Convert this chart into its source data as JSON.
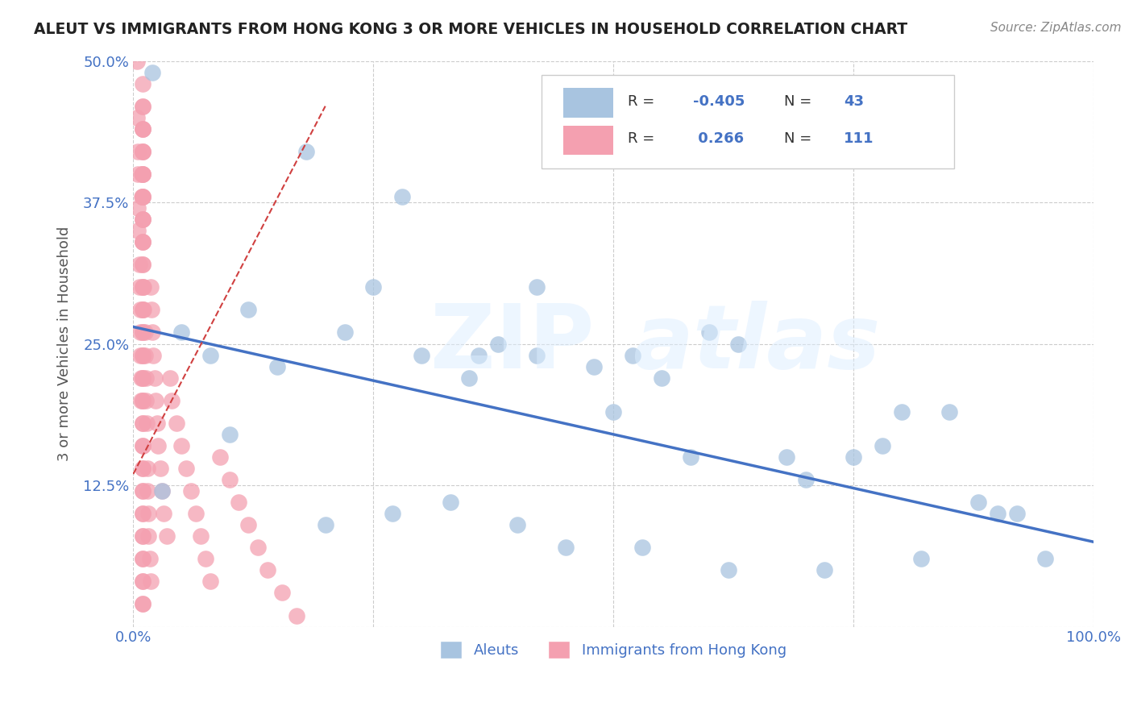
{
  "title": "ALEUT VS IMMIGRANTS FROM HONG KONG 3 OR MORE VEHICLES IN HOUSEHOLD CORRELATION CHART",
  "source": "Source: ZipAtlas.com",
  "ylabel": "3 or more Vehicles in Household",
  "xlim": [
    0,
    1.0
  ],
  "ylim": [
    0,
    0.5
  ],
  "blue_color": "#a8c4e0",
  "pink_color": "#f4a0b0",
  "line_blue": "#4472c4",
  "line_pink": "#d04040",
  "aleut_x": [
    0.02,
    0.18,
    0.12,
    0.28,
    0.35,
    0.42,
    0.48,
    0.52,
    0.58,
    0.63,
    0.7,
    0.78,
    0.85,
    0.92,
    0.05,
    0.08,
    0.15,
    0.22,
    0.3,
    0.36,
    0.42,
    0.5,
    0.55,
    0.6,
    0.68,
    0.75,
    0.8,
    0.88,
    0.03,
    0.1,
    0.2,
    0.27,
    0.33,
    0.4,
    0.45,
    0.53,
    0.62,
    0.72,
    0.82,
    0.9,
    0.95,
    0.25,
    0.38
  ],
  "aleut_y": [
    0.49,
    0.42,
    0.28,
    0.38,
    0.22,
    0.3,
    0.23,
    0.24,
    0.15,
    0.25,
    0.13,
    0.16,
    0.19,
    0.1,
    0.26,
    0.24,
    0.23,
    0.26,
    0.24,
    0.24,
    0.24,
    0.19,
    0.22,
    0.26,
    0.15,
    0.15,
    0.19,
    0.11,
    0.12,
    0.17,
    0.09,
    0.1,
    0.11,
    0.09,
    0.07,
    0.07,
    0.05,
    0.05,
    0.06,
    0.1,
    0.06,
    0.3,
    0.25
  ],
  "hk_x": [
    0.004,
    0.004,
    0.005,
    0.005,
    0.005,
    0.005,
    0.006,
    0.006,
    0.007,
    0.007,
    0.007,
    0.008,
    0.008,
    0.009,
    0.009,
    0.01,
    0.01,
    0.011,
    0.011,
    0.012,
    0.012,
    0.013,
    0.013,
    0.014,
    0.015,
    0.015,
    0.016,
    0.016,
    0.017,
    0.018,
    0.018,
    0.019,
    0.02,
    0.021,
    0.022,
    0.023,
    0.025,
    0.026,
    0.028,
    0.03,
    0.032,
    0.035,
    0.038,
    0.04,
    0.045,
    0.05,
    0.055,
    0.06,
    0.065,
    0.07,
    0.075,
    0.08,
    0.09,
    0.1,
    0.11,
    0.12,
    0.13,
    0.14,
    0.155,
    0.17,
    0.01,
    0.01,
    0.01,
    0.01,
    0.01,
    0.01,
    0.01,
    0.01,
    0.01,
    0.01,
    0.01,
    0.01,
    0.01,
    0.01,
    0.01,
    0.01,
    0.01,
    0.01,
    0.01,
    0.01,
    0.01,
    0.01,
    0.01,
    0.01,
    0.01,
    0.01,
    0.01,
    0.01,
    0.01,
    0.01,
    0.01,
    0.01,
    0.01,
    0.01,
    0.01,
    0.01,
    0.01,
    0.01,
    0.01,
    0.01,
    0.01,
    0.01,
    0.01,
    0.01,
    0.01,
    0.01,
    0.01,
    0.01,
    0.01,
    0.01,
    0.01
  ],
  "hk_y": [
    0.5,
    0.45,
    0.42,
    0.4,
    0.37,
    0.35,
    0.32,
    0.3,
    0.28,
    0.26,
    0.24,
    0.22,
    0.2,
    0.4,
    0.38,
    0.36,
    0.34,
    0.3,
    0.28,
    0.26,
    0.24,
    0.22,
    0.2,
    0.18,
    0.14,
    0.12,
    0.1,
    0.08,
    0.06,
    0.04,
    0.3,
    0.28,
    0.26,
    0.24,
    0.22,
    0.2,
    0.18,
    0.16,
    0.14,
    0.12,
    0.1,
    0.08,
    0.22,
    0.2,
    0.18,
    0.16,
    0.14,
    0.12,
    0.1,
    0.08,
    0.06,
    0.04,
    0.15,
    0.13,
    0.11,
    0.09,
    0.07,
    0.05,
    0.03,
    0.01,
    0.48,
    0.46,
    0.44,
    0.42,
    0.4,
    0.38,
    0.36,
    0.34,
    0.32,
    0.3,
    0.28,
    0.26,
    0.24,
    0.22,
    0.2,
    0.18,
    0.16,
    0.14,
    0.12,
    0.1,
    0.08,
    0.06,
    0.04,
    0.02,
    0.46,
    0.44,
    0.42,
    0.4,
    0.38,
    0.36,
    0.34,
    0.32,
    0.3,
    0.28,
    0.26,
    0.24,
    0.22,
    0.2,
    0.18,
    0.16,
    0.14,
    0.12,
    0.1,
    0.08,
    0.06,
    0.04,
    0.02,
    0.44,
    0.42,
    0.4,
    0.38
  ],
  "blue_line_x": [
    0.0,
    1.0
  ],
  "blue_line_y": [
    0.265,
    0.075
  ],
  "pink_line_x": [
    0.0,
    0.2
  ],
  "pink_line_y": [
    0.135,
    0.46
  ]
}
